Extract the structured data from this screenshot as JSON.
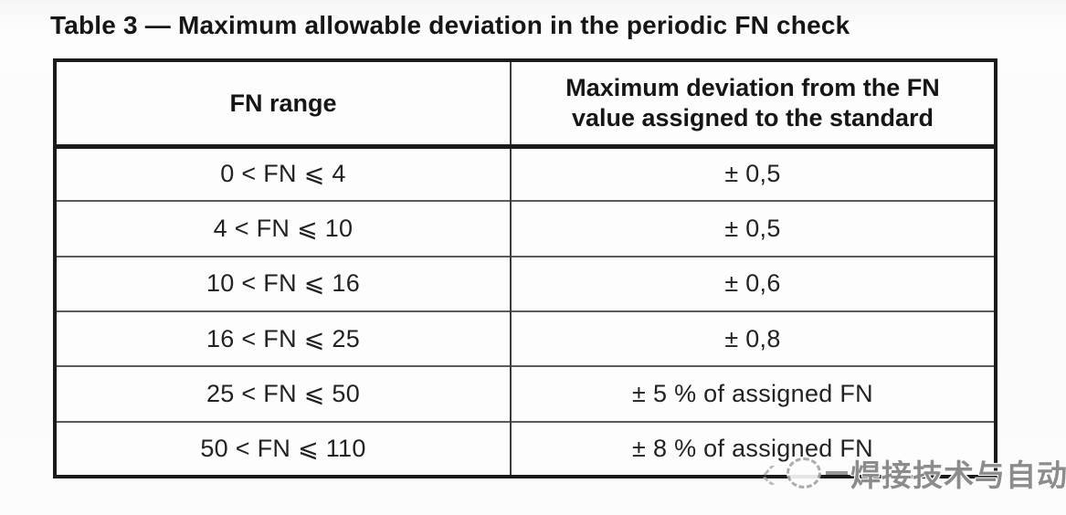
{
  "title": "Table 3 — Maximum allowable deviation in the periodic FN check",
  "table": {
    "headers": [
      "FN range",
      "Maximum deviation from the FN value assigned to the standard"
    ],
    "rows": [
      {
        "range": "0 < FN ⩽ 4",
        "deviation": "± 0,5"
      },
      {
        "range": "4 < FN ⩽ 10",
        "deviation": "± 0,5"
      },
      {
        "range": "10 < FN ⩽ 16",
        "deviation": "± 0,6"
      },
      {
        "range": "16 < FN ⩽ 25",
        "deviation": "± 0,8"
      },
      {
        "range": "25 < FN ⩽ 50",
        "deviation": "± 5 % of assigned FN"
      },
      {
        "range": "50 < FN ⩽ 110",
        "deviation": "± 8 % of assigned FN"
      }
    ]
  },
  "watermark": {
    "icon": "dashed-circle-logo-icon",
    "text": "焊接技术与自动化"
  },
  "colors": {
    "ink": "#1b1b1b",
    "thin_line": "#5a5a5a",
    "watermark_gray": "#8c8c8c",
    "background": "#fcfcfc"
  }
}
